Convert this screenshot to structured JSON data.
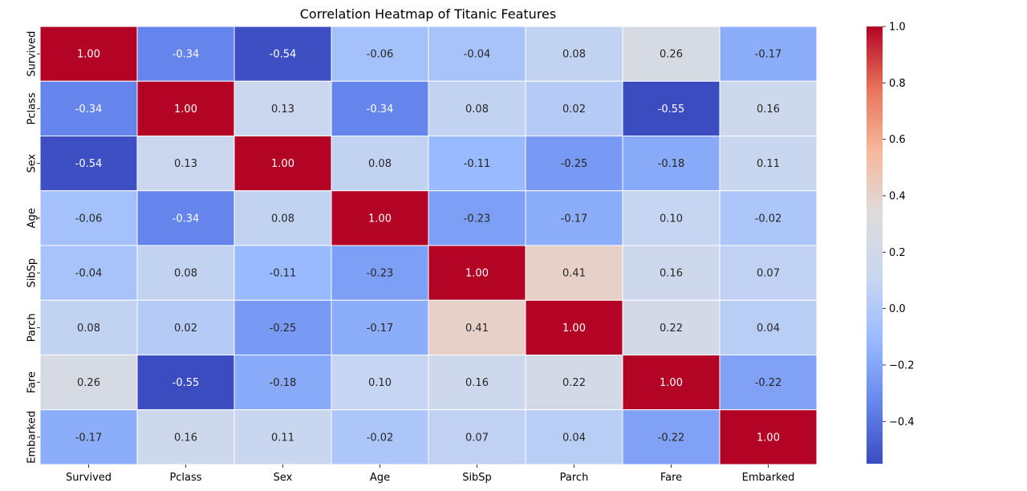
{
  "chart_data": {
    "type": "heatmap",
    "title": "Correlation Heatmap of Titanic Features",
    "xlabel": "",
    "ylabel": "",
    "x_categories": [
      "Survived",
      "Pclass",
      "Sex",
      "Age",
      "SibSp",
      "Parch",
      "Fare",
      "Embarked"
    ],
    "y_categories": [
      "Survived",
      "Pclass",
      "Sex",
      "Age",
      "SibSp",
      "Parch",
      "Fare",
      "Embarked"
    ],
    "values": [
      [
        1.0,
        -0.34,
        -0.54,
        -0.06,
        -0.04,
        0.08,
        0.26,
        -0.17
      ],
      [
        -0.34,
        1.0,
        0.13,
        -0.34,
        0.08,
        0.02,
        -0.55,
        0.16
      ],
      [
        -0.54,
        0.13,
        1.0,
        0.08,
        -0.11,
        -0.25,
        -0.18,
        0.11
      ],
      [
        -0.06,
        -0.34,
        0.08,
        1.0,
        -0.23,
        -0.17,
        0.1,
        -0.02
      ],
      [
        -0.04,
        0.08,
        -0.11,
        -0.23,
        1.0,
        0.41,
        0.16,
        0.07
      ],
      [
        0.08,
        0.02,
        -0.25,
        -0.17,
        0.41,
        1.0,
        0.22,
        0.04
      ],
      [
        0.26,
        -0.55,
        -0.18,
        0.1,
        0.16,
        0.22,
        1.0,
        -0.22
      ],
      [
        -0.17,
        0.16,
        0.11,
        -0.02,
        0.07,
        0.04,
        -0.22,
        1.0
      ]
    ],
    "value_format": "2 decimals",
    "colormap": "coolwarm",
    "colormap_stops": [
      "#3b4cc0",
      "#6788ee",
      "#9abbff",
      "#c9d7f0",
      "#dddcdc",
      "#f7b89c",
      "#e7745b",
      "#b40426"
    ],
    "color_range": [
      -0.55,
      1.0
    ],
    "colorbar_ticks": [
      "1.0",
      "0.8",
      "0.6",
      "0.4",
      "0.2",
      "0.0",
      "−0.2",
      "−0.4"
    ],
    "colorbar_tick_values": [
      1.0,
      0.8,
      0.6,
      0.4,
      0.2,
      0.0,
      -0.2,
      -0.4
    ],
    "cell_separator_color": "#ffffff",
    "legend": "colorbar-right",
    "grid": false
  }
}
